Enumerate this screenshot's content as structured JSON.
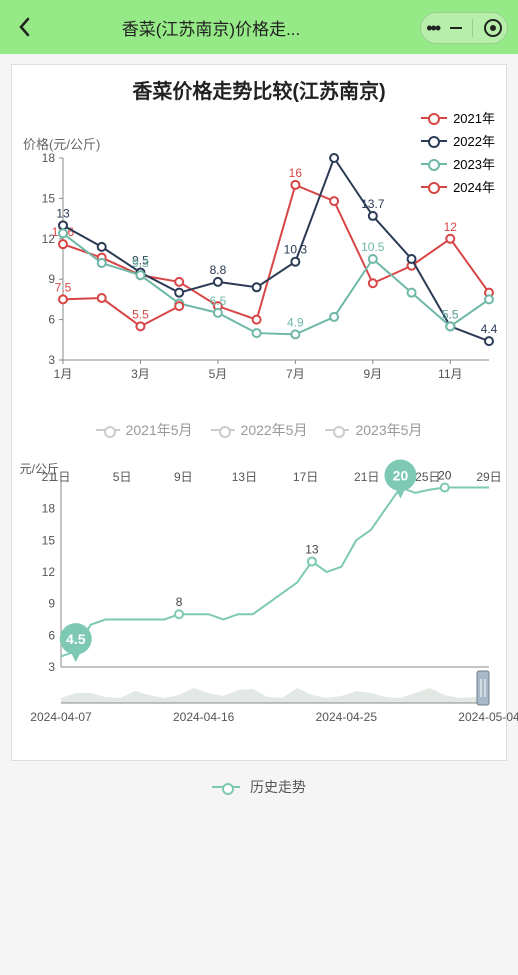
{
  "header": {
    "title": "香菜(江苏南京)价格走..."
  },
  "chart1": {
    "title": "香菜价格走势比较(江苏南京)",
    "y_axis_label": "价格(元/公斤)",
    "legend": [
      {
        "label": "2021年",
        "color": "#d84545"
      },
      {
        "label": "2022年",
        "color": "#2b3a55"
      },
      {
        "label": "2023年",
        "color": "#6fb8a8"
      },
      {
        "label": "2024年",
        "color": "#d84545"
      }
    ],
    "x_ticks": [
      "1月",
      "3月",
      "5月",
      "7月",
      "9月",
      "11月"
    ],
    "y_ticks": [
      3,
      6,
      9,
      12,
      15,
      18
    ],
    "ylim": [
      3,
      18
    ],
    "background": "#ffffff",
    "axis_color": "#888888",
    "series": [
      {
        "color": "#d84545",
        "points": [
          11.6,
          10.6,
          9.3,
          8.8,
          7.0,
          6.0,
          16,
          14.8,
          8.7,
          10.0,
          12,
          8.0
        ],
        "labels": {
          "0": "11.6",
          "4": "",
          "6": "16",
          "10": "12"
        }
      },
      {
        "color": "#2b3a55",
        "points": [
          13,
          11.4,
          9.5,
          8.0,
          8.8,
          8.4,
          10.3,
          18.0,
          13.7,
          10.5,
          5.5,
          4.4
        ],
        "labels": {
          "0": "13",
          "2": "9.5",
          "4": "8.8",
          "6": "10.3",
          "8": "13.7",
          "10": "5.5",
          "11": "4.4"
        }
      },
      {
        "color": "#6fb8a8",
        "points": [
          12.4,
          10.2,
          9.3,
          7.2,
          6.5,
          5.0,
          4.9,
          6.2,
          10.5,
          8.0,
          5.5,
          7.5
        ],
        "labels": {
          "2": "9.3",
          "4": "6.5",
          "6": "4.9",
          "8": "10.5",
          "10": "5.5"
        }
      },
      {
        "color": "#d84545",
        "points": [
          7.5,
          7.6,
          5.5,
          7.0
        ],
        "labels": {
          "0": "7.5",
          "2": "5.5"
        }
      }
    ]
  },
  "chart2": {
    "y_axis_label": "元/公斤",
    "top_legend": [
      "2021年5月",
      "2022年5月",
      "2023年5月"
    ],
    "day_ticks": [
      "1日",
      "5日",
      "9日",
      "13日",
      "17日",
      "21日",
      "25日",
      "29日"
    ],
    "y_ticks": [
      3,
      6,
      9,
      12,
      15,
      18,
      21
    ],
    "ylim": [
      3,
      21
    ],
    "x_dates": [
      "2024-04-07",
      "2024-04-16",
      "2024-04-25",
      "2024-05-04"
    ],
    "series_color": "#7dc9b3",
    "mini_color": "#cfd8d0",
    "points": [
      4.0,
      4.5,
      7.0,
      7.5,
      7.5,
      7.5,
      7.5,
      7.5,
      8,
      8,
      8,
      7.5,
      8,
      8,
      9,
      10,
      11,
      13,
      12,
      12.5,
      15,
      16,
      18,
      20,
      19.5,
      19.8,
      20,
      20,
      20,
      20
    ],
    "markers": [
      {
        "index": 1,
        "value": "4.5",
        "big": true
      },
      {
        "index": 8,
        "value": "8",
        "big": false
      },
      {
        "index": 17,
        "value": "13",
        "big": false
      },
      {
        "index": 23,
        "value": "20",
        "big": true
      },
      {
        "index": 26,
        "value": "20",
        "big": false
      }
    ],
    "mini_series": [
      3.5,
      4,
      4,
      3.6,
      3.5,
      4.2,
      3.8,
      3.5,
      3.8,
      4.5,
      4.0,
      3.7,
      4.3,
      4.4,
      3.6,
      3.5,
      4.5,
      3.8,
      3.5,
      3.7,
      4.2,
      4.0,
      3.6,
      3.5,
      4.0,
      4.5,
      3.8,
      3.5,
      3.6,
      3.8
    ],
    "bottom_legend_label": "历史走势"
  }
}
